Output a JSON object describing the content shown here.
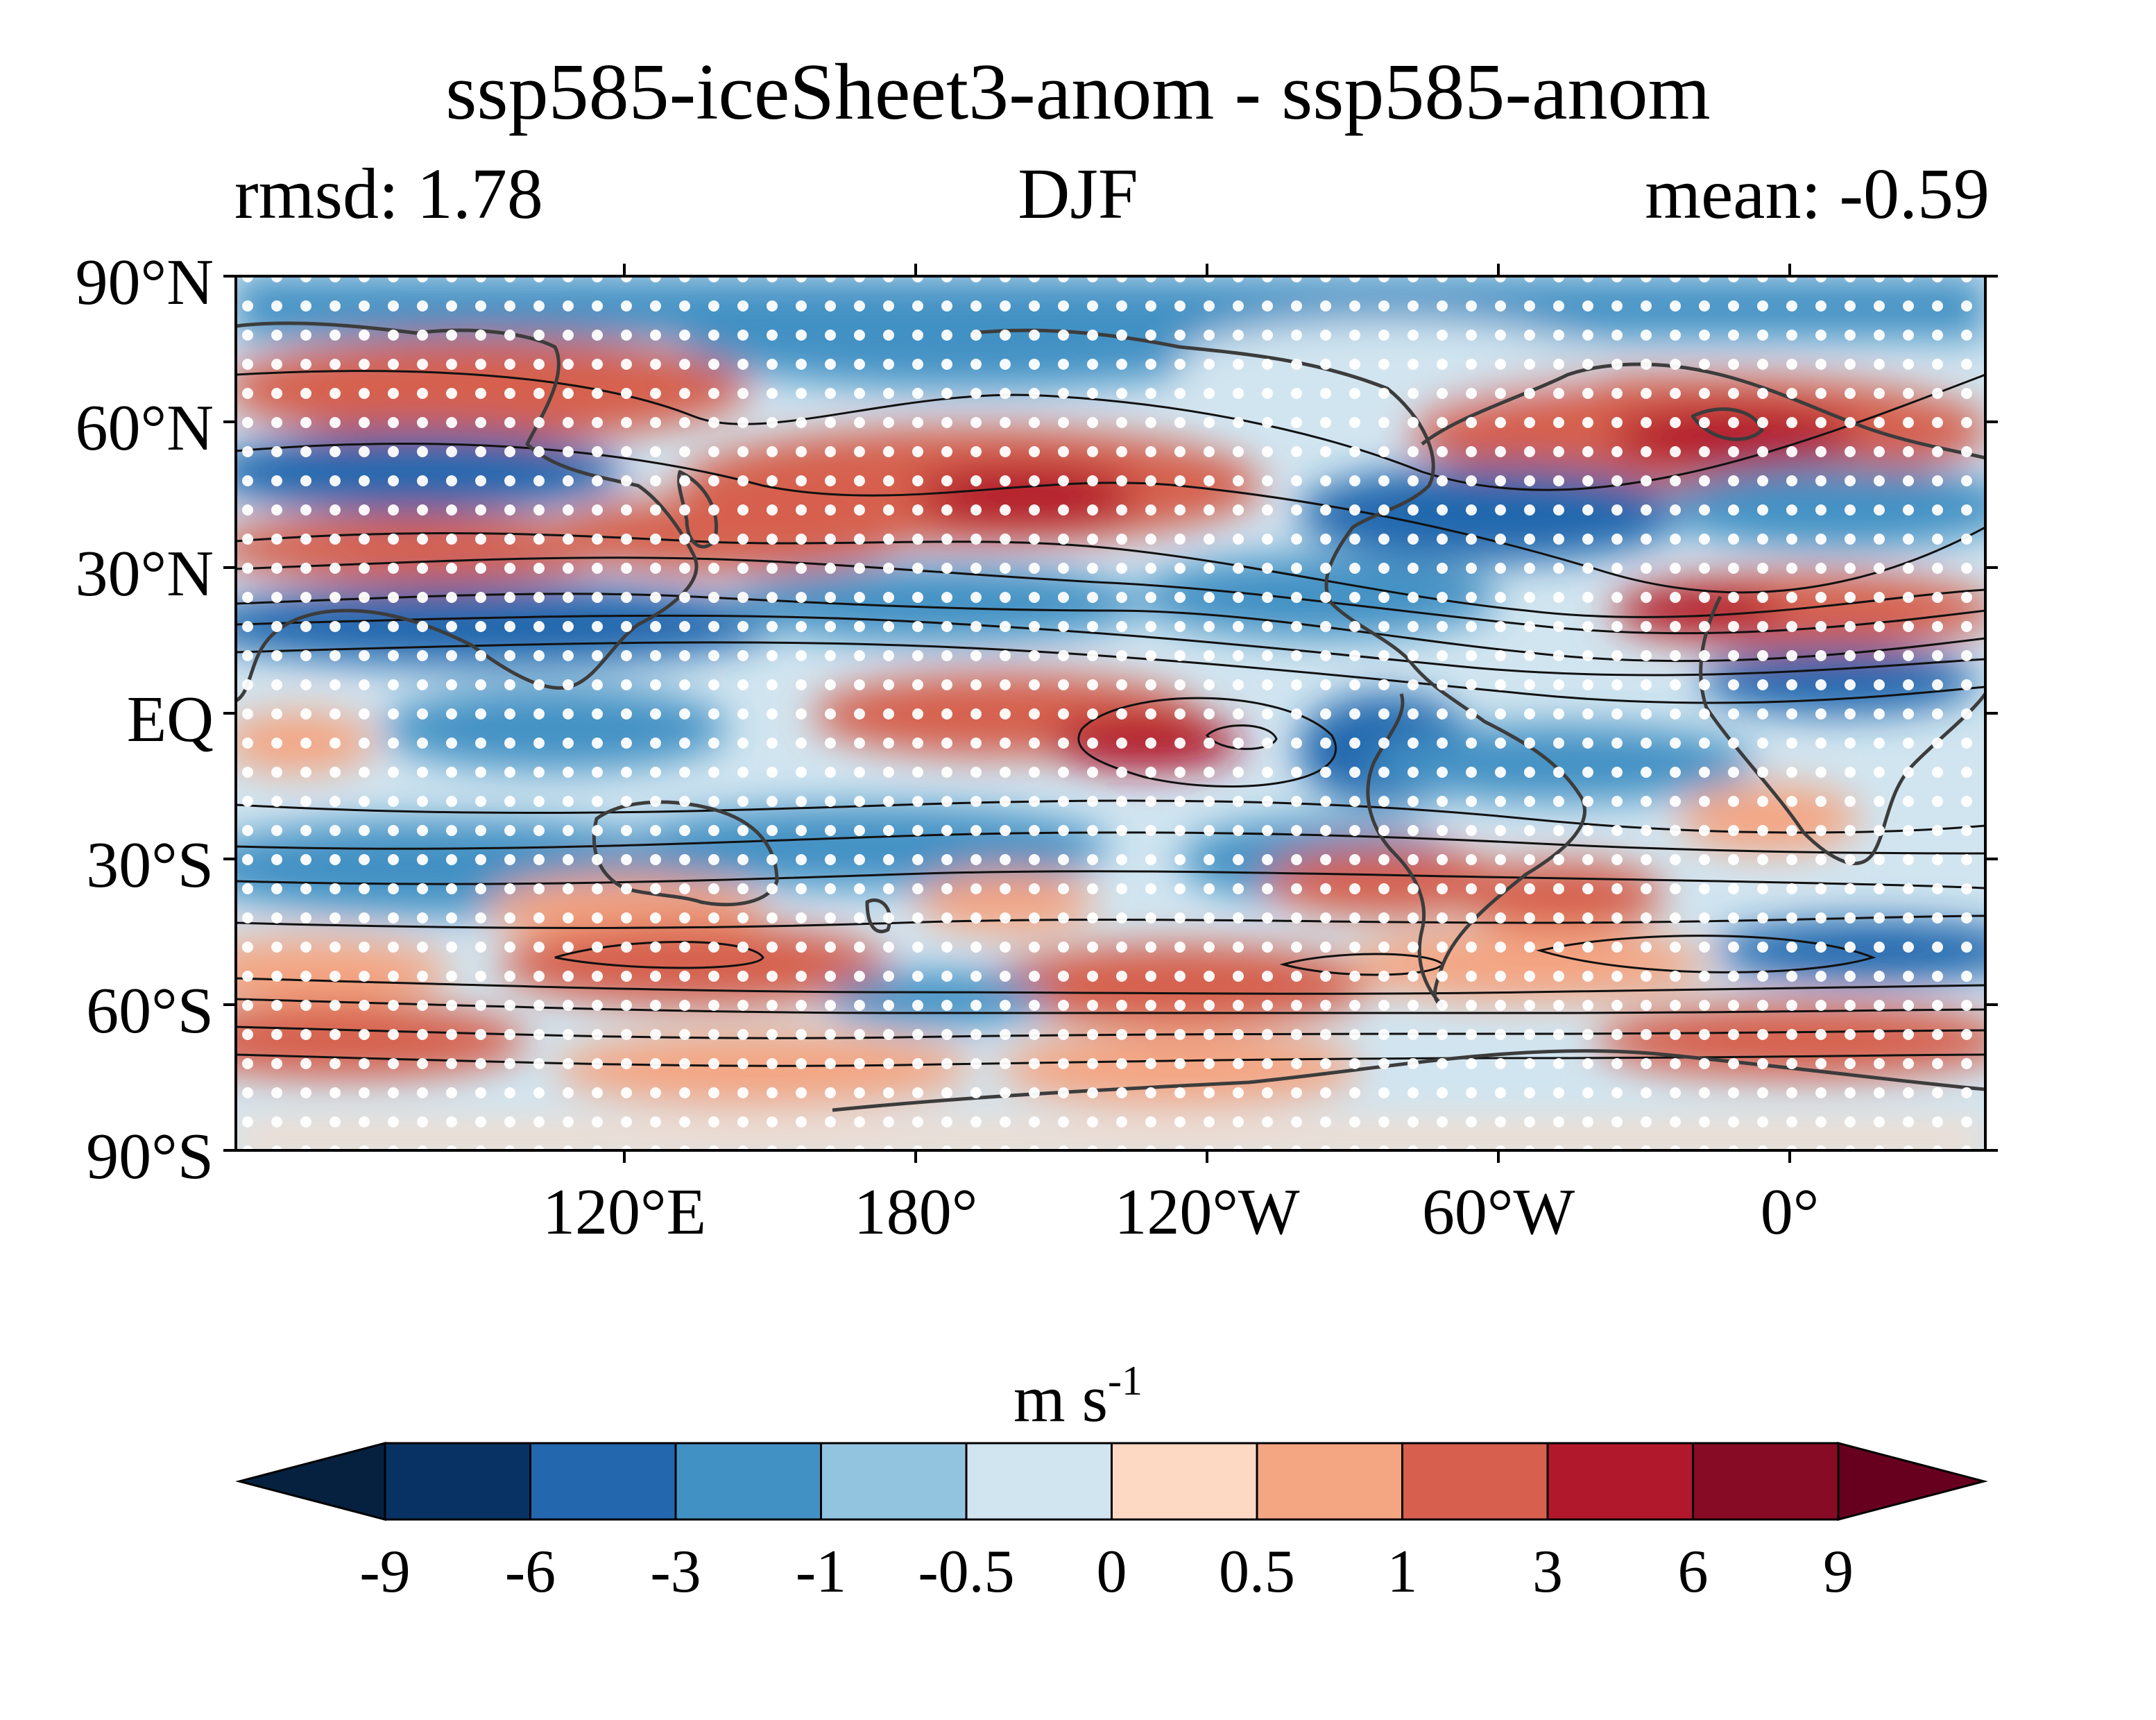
{
  "title": "ssp585-iceSheet3-anom - ssp585-anom",
  "subtitle_left": "rmsd: 1.78",
  "subtitle_center": "DJF",
  "subtitle_right": "mean: -0.59",
  "lat_labels": [
    "90°N",
    "60°N",
    "30°N",
    "EQ",
    "30°S",
    "60°S",
    "90°S"
  ],
  "lon_labels": [
    "120°E",
    "180°",
    "120°W",
    "60°W",
    "0°"
  ],
  "colorbar": {
    "units_base": "m s",
    "units_exp": "-1",
    "levels": [
      "-9",
      "-6",
      "-3",
      "-1",
      "-0.5",
      "0",
      "0.5",
      "1",
      "3",
      "6",
      "9"
    ],
    "colors": [
      "#06213f",
      "#083264",
      "#2367ae",
      "#4291c4",
      "#93c4df",
      "#d1e5f0",
      "#fdd9c4",
      "#f4a582",
      "#d6604d",
      "#b2182b",
      "#870b25",
      "#67001f"
    ]
  },
  "map": {
    "colormap": "RdBu_r",
    "stippling": "white dots mark significant regions",
    "contours": "black climatology contours",
    "coastlines": "dark grey"
  }
}
